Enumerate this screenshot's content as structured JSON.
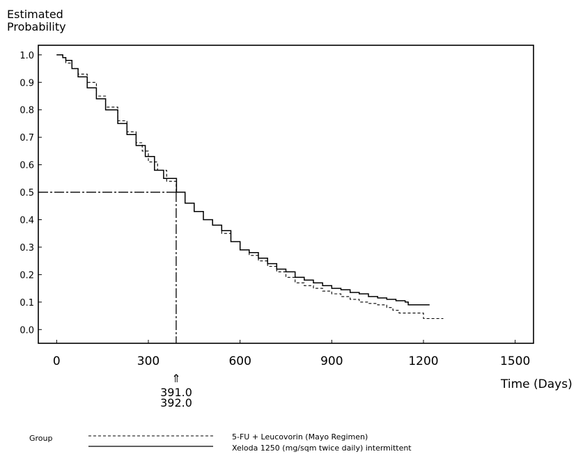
{
  "chart_data": {
    "type": "line",
    "ylabel_line1": "Estimated",
    "ylabel_line2": "Probability",
    "xlabel": "Time (Days)",
    "xlim": [
      -60,
      1560
    ],
    "ylim": [
      -0.05,
      1.035
    ],
    "x_ticks": [
      "0",
      "300",
      "600",
      "900",
      "1200",
      "1500"
    ],
    "x_tick_values": [
      0,
      300,
      600,
      900,
      1200,
      1500
    ],
    "y_ticks": [
      "0.0",
      "0.1",
      "0.2",
      "0.3",
      "0.4",
      "0.5",
      "0.6",
      "0.7",
      "0.8",
      "0.9",
      "1.0"
    ],
    "y_tick_values": [
      0.0,
      0.1,
      0.2,
      0.3,
      0.4,
      0.5,
      0.6,
      0.7,
      0.8,
      0.9,
      1.0
    ],
    "median_line": {
      "y": 0.5,
      "x": 391
    },
    "median_labels": [
      "391.0",
      "392.0"
    ],
    "median_arrow": "⇑",
    "legend_title": "Group",
    "series": [
      {
        "name": "5-FU + Leucovorin (Mayo Regimen)",
        "style": "dashed",
        "x": [
          0,
          10,
          20,
          30,
          50,
          70,
          100,
          130,
          160,
          200,
          230,
          260,
          280,
          300,
          330,
          360,
          391,
          420,
          450,
          480,
          510,
          540,
          570,
          600,
          630,
          660,
          690,
          720,
          750,
          780,
          810,
          840,
          870,
          900,
          930,
          960,
          990,
          1020,
          1050,
          1080,
          1100,
          1120,
          1150,
          1180,
          1195,
          1200,
          1230,
          1265
        ],
        "y": [
          1.0,
          1.0,
          0.99,
          0.97,
          0.95,
          0.93,
          0.9,
          0.85,
          0.81,
          0.76,
          0.72,
          0.68,
          0.65,
          0.61,
          0.58,
          0.54,
          0.5,
          0.46,
          0.43,
          0.4,
          0.38,
          0.35,
          0.32,
          0.29,
          0.27,
          0.25,
          0.23,
          0.21,
          0.19,
          0.17,
          0.16,
          0.15,
          0.14,
          0.13,
          0.12,
          0.11,
          0.1,
          0.095,
          0.09,
          0.08,
          0.07,
          0.06,
          0.06,
          0.06,
          0.06,
          0.04,
          0.04,
          0.04
        ]
      },
      {
        "name": "Xeloda 1250 (mg/sqm twice daily) intermittent",
        "style": "solid",
        "x": [
          0,
          10,
          20,
          30,
          50,
          70,
          100,
          130,
          160,
          200,
          230,
          260,
          290,
          320,
          350,
          392,
          420,
          450,
          480,
          510,
          540,
          570,
          600,
          630,
          660,
          690,
          720,
          750,
          780,
          810,
          840,
          870,
          900,
          930,
          960,
          990,
          1020,
          1050,
          1080,
          1110,
          1140,
          1150,
          1180,
          1220
        ],
        "y": [
          1.0,
          1.0,
          0.99,
          0.98,
          0.95,
          0.92,
          0.88,
          0.84,
          0.8,
          0.75,
          0.71,
          0.67,
          0.63,
          0.58,
          0.55,
          0.5,
          0.46,
          0.43,
          0.4,
          0.38,
          0.36,
          0.32,
          0.29,
          0.28,
          0.26,
          0.24,
          0.22,
          0.21,
          0.19,
          0.18,
          0.17,
          0.16,
          0.15,
          0.145,
          0.135,
          0.13,
          0.12,
          0.115,
          0.11,
          0.105,
          0.1,
          0.09,
          0.09,
          0.09
        ]
      }
    ]
  }
}
